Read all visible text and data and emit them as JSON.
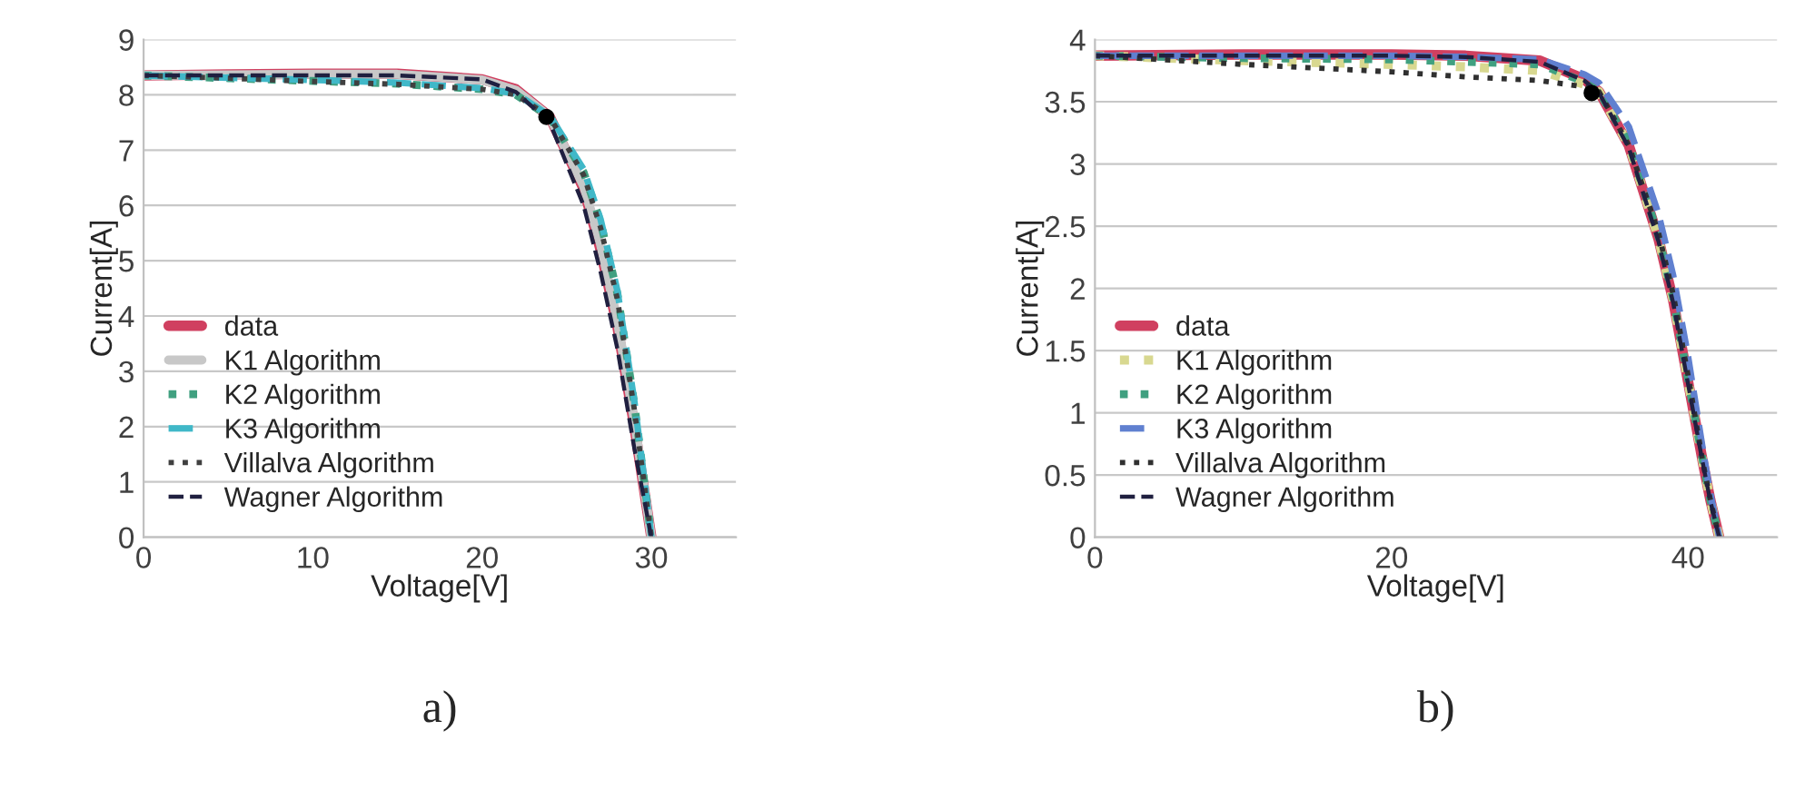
{
  "chart_data": [
    {
      "type": "line",
      "xlabel": "Voltage[V]",
      "ylabel": "Current[A]",
      "annotations": [
        "a)"
      ],
      "xlim": [
        0,
        35
      ],
      "xticks": [
        0,
        10,
        20,
        30
      ],
      "ylim": [
        0,
        9
      ],
      "yticks": [
        0,
        1,
        2,
        3,
        4,
        5,
        6,
        7,
        8,
        9
      ],
      "grid": "y",
      "legend": "bottom left",
      "x": [
        0,
        5,
        10,
        15,
        20,
        22,
        24,
        26,
        27,
        28,
        29,
        29.5,
        30
      ],
      "series": [
        {
          "name": "data",
          "color": "#d04060",
          "line_style": "solid",
          "values": [
            8.35,
            8.37,
            8.38,
            8.38,
            8.28,
            8.1,
            7.6,
            6.3,
            5.2,
            3.8,
            2.0,
            1.0,
            0
          ]
        },
        {
          "name": "K1 Algorithm",
          "color": "#c8c8c8",
          "line_style": "solid",
          "values": [
            8.35,
            8.36,
            8.37,
            8.37,
            8.27,
            8.08,
            7.6,
            6.35,
            5.3,
            3.9,
            2.1,
            1.05,
            0
          ]
        },
        {
          "name": "K2 Algorithm",
          "color": "#40a080",
          "line_style": "dotted",
          "values": [
            8.35,
            8.3,
            8.25,
            8.2,
            8.1,
            8.0,
            7.6,
            6.6,
            5.7,
            4.4,
            2.4,
            1.2,
            0
          ]
        },
        {
          "name": "K3 Algorithm",
          "color": "#40b8c8",
          "line_style": "dashed",
          "values": [
            8.35,
            8.31,
            8.27,
            8.22,
            8.12,
            8.02,
            7.62,
            6.65,
            5.75,
            4.45,
            2.45,
            1.25,
            0
          ]
        },
        {
          "name": "Villalva Algorithm",
          "color": "#404040",
          "line_style": "dotted",
          "values": [
            8.35,
            8.3,
            8.24,
            8.19,
            8.1,
            8.0,
            7.6,
            6.55,
            5.6,
            4.3,
            2.3,
            1.15,
            0
          ]
        },
        {
          "name": "Wagner Algorithm",
          "color": "#202040",
          "line_style": "dashed",
          "values": [
            8.35,
            8.35,
            8.35,
            8.35,
            8.28,
            8.05,
            7.5,
            6.0,
            4.8,
            3.4,
            1.6,
            0.8,
            0
          ]
        },
        {
          "type": "scatter",
          "color": "#000000",
          "x": [
            23.8
          ],
          "values": [
            7.6
          ]
        }
      ]
    },
    {
      "type": "line",
      "xlabel": "Voltage[V]",
      "ylabel": "Current[A]",
      "annotations": [
        "b)"
      ],
      "xlim": [
        0,
        46
      ],
      "xticks": [
        0,
        20,
        40
      ],
      "ylim": [
        0,
        4
      ],
      "yticks": [
        0,
        0.5,
        1,
        1.5,
        2,
        2.5,
        3,
        3.5,
        4
      ],
      "grid": "y",
      "legend": "bottom left",
      "x": [
        0,
        10,
        20,
        25,
        30,
        33,
        34,
        36,
        38,
        39,
        40,
        41,
        41.5,
        42.1
      ],
      "series": [
        {
          "name": "data",
          "color": "#d04060",
          "line_style": "solid",
          "values": [
            3.87,
            3.88,
            3.88,
            3.87,
            3.83,
            3.68,
            3.58,
            3.15,
            2.4,
            1.9,
            1.25,
            0.6,
            0.3,
            0
          ]
        },
        {
          "name": "K1 Algorithm",
          "color": "#d8d890",
          "line_style": "dotted",
          "values": [
            3.87,
            3.83,
            3.8,
            3.78,
            3.75,
            3.64,
            3.58,
            3.15,
            2.4,
            1.9,
            1.25,
            0.6,
            0.3,
            0
          ]
        },
        {
          "name": "K2 Algorithm",
          "color": "#40a080",
          "line_style": "dotted",
          "values": [
            3.87,
            3.85,
            3.84,
            3.82,
            3.8,
            3.66,
            3.58,
            3.17,
            2.42,
            1.92,
            1.27,
            0.61,
            0.3,
            0
          ]
        },
        {
          "name": "K3 Algorithm",
          "color": "#6080d0",
          "line_style": "dashed",
          "values": [
            3.87,
            3.87,
            3.87,
            3.86,
            3.84,
            3.72,
            3.65,
            3.3,
            2.6,
            2.1,
            1.45,
            0.7,
            0.35,
            0
          ]
        },
        {
          "name": "Villalva Algorithm",
          "color": "#303030",
          "line_style": "dotted",
          "values": [
            3.87,
            3.8,
            3.74,
            3.7,
            3.67,
            3.62,
            3.58,
            3.15,
            2.45,
            1.95,
            1.3,
            0.6,
            0.3,
            0
          ]
        },
        {
          "name": "Wagner Algorithm",
          "color": "#202040",
          "line_style": "dashed",
          "values": [
            3.87,
            3.87,
            3.87,
            3.86,
            3.82,
            3.67,
            3.57,
            3.13,
            2.38,
            1.88,
            1.23,
            0.59,
            0.29,
            0
          ]
        },
        {
          "type": "scatter",
          "color": "#000000",
          "x": [
            33.5
          ],
          "values": [
            3.57
          ]
        }
      ]
    }
  ]
}
